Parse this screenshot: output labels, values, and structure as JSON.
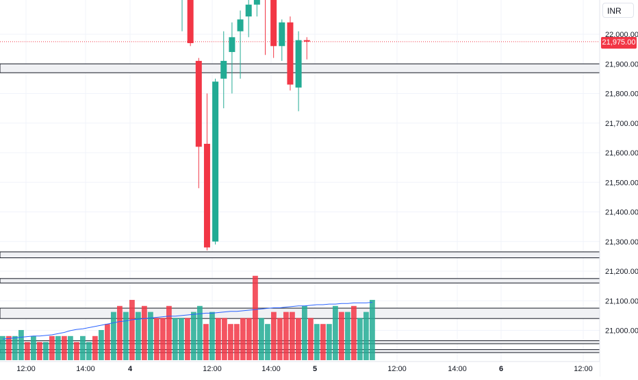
{
  "currency": "INR",
  "last_price_label": "21,975.00",
  "colors": {
    "up": "#22ab94",
    "down": "#f23645",
    "grid": "#f0f3fa",
    "axis_text": "#131722",
    "ma_line": "#2962ff",
    "zone_fill": "#f0f1f4"
  },
  "chart_data": {
    "type": "candlestick",
    "title": "",
    "xlabel": "",
    "ylabel": "",
    "ylim": [
      20845,
      22115
    ],
    "y_ticks": [
      21000,
      21100,
      21200,
      21300,
      21400,
      21500,
      21600,
      21700,
      21800,
      21900,
      22000
    ],
    "y_tick_labels": [
      "21,000.00",
      "21,100.00",
      "21,200.00",
      "21,300.00",
      "21,400.00",
      "21,500.00",
      "21,600.00",
      "21,700.00",
      "21,800.00",
      "21,900.00",
      "22,000.00"
    ],
    "x_labels": [
      "12:00",
      "14:00",
      "4",
      "12:00",
      "14:00",
      "5",
      "12:00",
      "14:00",
      "6",
      "12:00"
    ],
    "last_price": 21975,
    "candles": [
      {
        "open": 22180,
        "high": 22200,
        "low": 22010,
        "close": 22180
      },
      {
        "open": 22180,
        "high": 22190,
        "low": 21960,
        "close": 21970
      },
      {
        "open": 21910,
        "high": 21920,
        "low": 21480,
        "close": 21620
      },
      {
        "open": 21630,
        "high": 21800,
        "low": 21270,
        "close": 21280
      },
      {
        "open": 21300,
        "high": 21850,
        "low": 21290,
        "close": 21840
      },
      {
        "open": 21850,
        "high": 22010,
        "low": 21750,
        "close": 21910
      },
      {
        "open": 21940,
        "high": 22040,
        "low": 21800,
        "close": 21990
      },
      {
        "open": 22010,
        "high": 22080,
        "low": 21850,
        "close": 22050
      },
      {
        "open": 22060,
        "high": 22140,
        "low": 21990,
        "close": 22100
      },
      {
        "open": 22100,
        "high": 22200,
        "low": 22060,
        "close": 22160
      },
      {
        "open": 22170,
        "high": 22210,
        "low": 21930,
        "close": 22140
      },
      {
        "open": 22140,
        "high": 22180,
        "low": 21920,
        "close": 21960
      },
      {
        "open": 21960,
        "high": 22050,
        "low": 21910,
        "close": 22040
      },
      {
        "open": 22040,
        "high": 22060,
        "low": 21810,
        "close": 21830
      },
      {
        "open": 21820,
        "high": 22010,
        "low": 21740,
        "close": 21980
      },
      {
        "open": 21980,
        "high": 21990,
        "low": 21915,
        "close": 21975
      }
    ],
    "levels": [
      {
        "low": 21870,
        "high": 21900
      },
      {
        "low": 21245,
        "high": 21265
      },
      {
        "low": 21160,
        "high": 21175
      },
      {
        "low": 21040,
        "high": 21075
      },
      {
        "low": 20955,
        "high": 20965
      },
      {
        "low": 20925,
        "high": 20935
      }
    ],
    "volume": {
      "values": [
        4,
        4,
        4,
        5,
        3,
        4,
        3,
        3,
        4,
        4,
        4,
        4,
        3,
        4,
        3,
        4,
        5,
        6,
        8,
        9,
        8,
        10,
        8,
        9,
        8,
        7,
        7,
        9,
        7,
        7,
        7,
        8,
        9,
        6,
        8,
        7,
        7,
        6,
        6,
        7,
        7,
        14,
        7,
        6,
        8,
        7,
        8,
        8,
        7,
        9,
        7,
        6,
        6,
        6,
        9,
        8,
        8,
        9,
        7,
        8,
        10
      ],
      "down": [
        0,
        1,
        0,
        0,
        1,
        0,
        1,
        0,
        1,
        0,
        1,
        0,
        1,
        0,
        0,
        1,
        0,
        1,
        0,
        1,
        0,
        1,
        0,
        1,
        0,
        1,
        1,
        1,
        0,
        0,
        1,
        0,
        0,
        1,
        0,
        1,
        1,
        1,
        1,
        1,
        1,
        1,
        0,
        0,
        1,
        1,
        1,
        1,
        1,
        0,
        1,
        0,
        1,
        0,
        0,
        1,
        0,
        1,
        0,
        0,
        0
      ],
      "ma": [
        3.5,
        3.6,
        3.7,
        3.8,
        3.9,
        4.0,
        4.0,
        4.1,
        4.2,
        4.4,
        4.6,
        4.9,
        5.1,
        5.2,
        5.4,
        5.6,
        5.8,
        6.0,
        6.2,
        6.4,
        6.5,
        6.7,
        6.8,
        6.9,
        7.0,
        7.1,
        7.2,
        7.3,
        7.3,
        7.4,
        7.5,
        7.6,
        7.7,
        7.8,
        7.8,
        7.9,
        8.0,
        8.1,
        8.1,
        8.2,
        8.3,
        8.4,
        8.5,
        8.6,
        8.7,
        8.7,
        8.8,
        8.9,
        9.0,
        9.0,
        9.1,
        9.2,
        9.2,
        9.3,
        9.3,
        9.4,
        9.4,
        9.5,
        9.5,
        9.5,
        9.6
      ]
    }
  }
}
